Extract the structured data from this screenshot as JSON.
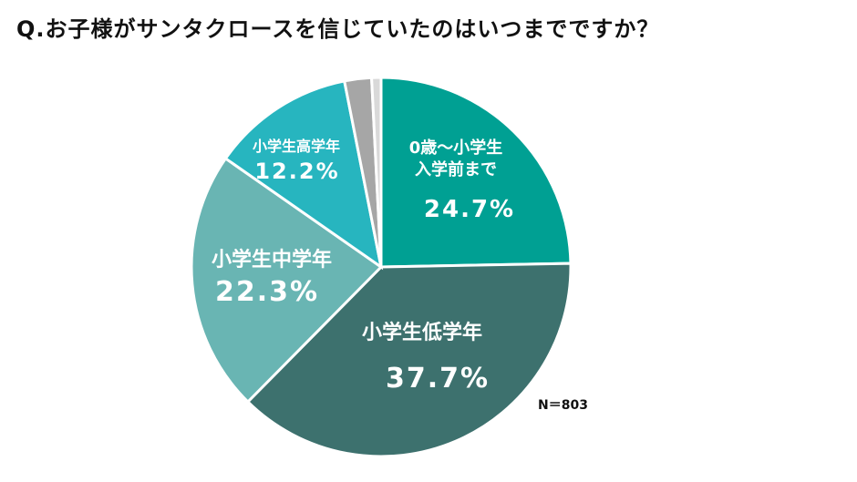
{
  "chart_data": {
    "type": "pie",
    "title": "Q.お子様がサンタクロースを信じていたのはいつまでですか？",
    "note": "N＝803",
    "slices": [
      {
        "label": "0歳〜小学生\n入学前まで",
        "value": 24.7,
        "value_label": "24.7%",
        "color": "#00a093"
      },
      {
        "label": "小学生低学年",
        "value": 37.7,
        "value_label": "37.7%",
        "color": "#3d716e"
      },
      {
        "label": "小学生中学年",
        "value": 22.3,
        "value_label": "22.3%",
        "color": "#69b5b3"
      },
      {
        "label": "小学生高学年",
        "value": 12.2,
        "value_label": "12.2%",
        "color": "#27b5bf"
      },
      {
        "label": "",
        "value": 2.3,
        "value_label": "",
        "color": "#a6a6a6"
      },
      {
        "label": "",
        "value": 0.8,
        "value_label": "",
        "color": "#d9d9d9"
      }
    ]
  }
}
